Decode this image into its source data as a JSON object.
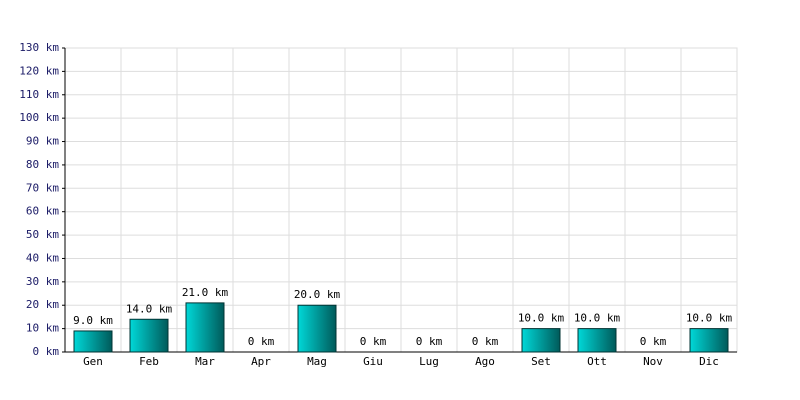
{
  "chart_data": {
    "type": "bar",
    "categories": [
      "Gen",
      "Feb",
      "Mar",
      "Apr",
      "Mag",
      "Giu",
      "Lug",
      "Ago",
      "Set",
      "Ott",
      "Nov",
      "Dic"
    ],
    "values": [
      9,
      14,
      21,
      0,
      20,
      0,
      0,
      0,
      10,
      10,
      0,
      10
    ],
    "value_labels": [
      "9.0 km",
      "14.0 km",
      "21.0 km",
      "0 km",
      "20.0 km",
      "0 km",
      "0 km",
      "0 km",
      "10.0 km",
      "10.0 km",
      "0 km",
      "10.0 km"
    ],
    "color": "#00d8d8",
    "ylim": [
      0,
      130
    ],
    "yticks": [
      {
        "value": 0,
        "label": "0 km"
      },
      {
        "value": 10,
        "label": "10 km"
      },
      {
        "value": 20,
        "label": "20 km"
      },
      {
        "value": 30,
        "label": "30 km"
      },
      {
        "value": 40,
        "label": "40 km"
      },
      {
        "value": 50,
        "label": "50 km"
      },
      {
        "value": 60,
        "label": "60 km"
      },
      {
        "value": 70,
        "label": "70 km"
      },
      {
        "value": 80,
        "label": "80 km"
      },
      {
        "value": 90,
        "label": "90 km"
      },
      {
        "value": 100,
        "label": "100 km"
      },
      {
        "value": 110,
        "label": "110 km"
      },
      {
        "value": 120,
        "label": "120 km"
      },
      {
        "value": 130,
        "label": "130 km"
      }
    ],
    "grid": true
  }
}
